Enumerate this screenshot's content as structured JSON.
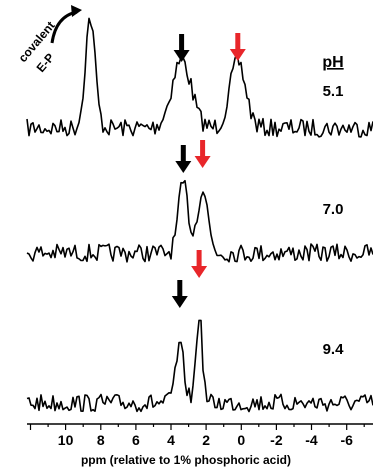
{
  "chart_data": {
    "type": "line",
    "title": "",
    "xlabel": "ppm (relative to 1% phosphoric acid)",
    "ylabel": "",
    "x_reversed": true,
    "xlim": [
      12.2,
      -7.5
    ],
    "x_ticks": [
      "10",
      "8",
      "6",
      "4",
      "2",
      "0",
      "-2",
      "-4",
      "-6"
    ],
    "legend_header": "pH",
    "annotation": {
      "line1": "covalent",
      "line2": "E-P",
      "peak_ppm": 8.6
    },
    "colors": {
      "black_arrow": "#000000",
      "red_arrow": "#e8262a"
    },
    "series": [
      {
        "name": "5.1",
        "peaks": [
          {
            "ppm": 8.6,
            "height": 1.0,
            "width": 0.28
          },
          {
            "ppm": 3.4,
            "height": 0.62,
            "width": 0.55
          },
          {
            "ppm": 0.2,
            "height": 0.6,
            "width": 0.45
          }
        ],
        "arrows": [
          {
            "ppm": 3.4,
            "color": "black"
          },
          {
            "ppm": 0.2,
            "color": "red"
          }
        ]
      },
      {
        "name": "7.0",
        "peaks": [
          {
            "ppm": 3.3,
            "height": 0.88,
            "width": 0.28
          },
          {
            "ppm": 2.2,
            "height": 0.82,
            "width": 0.3
          }
        ],
        "arrows": [
          {
            "ppm": 3.3,
            "color": "black"
          },
          {
            "ppm": 2.2,
            "color": "red"
          }
        ]
      },
      {
        "name": "9.4",
        "peaks": [
          {
            "ppm": 3.5,
            "height": 0.62,
            "width": 0.25
          },
          {
            "ppm": 2.4,
            "height": 1.0,
            "width": 0.18
          }
        ],
        "arrows": [
          {
            "ppm": 3.5,
            "color": "black"
          },
          {
            "ppm": 2.4,
            "color": "red"
          }
        ]
      }
    ]
  }
}
